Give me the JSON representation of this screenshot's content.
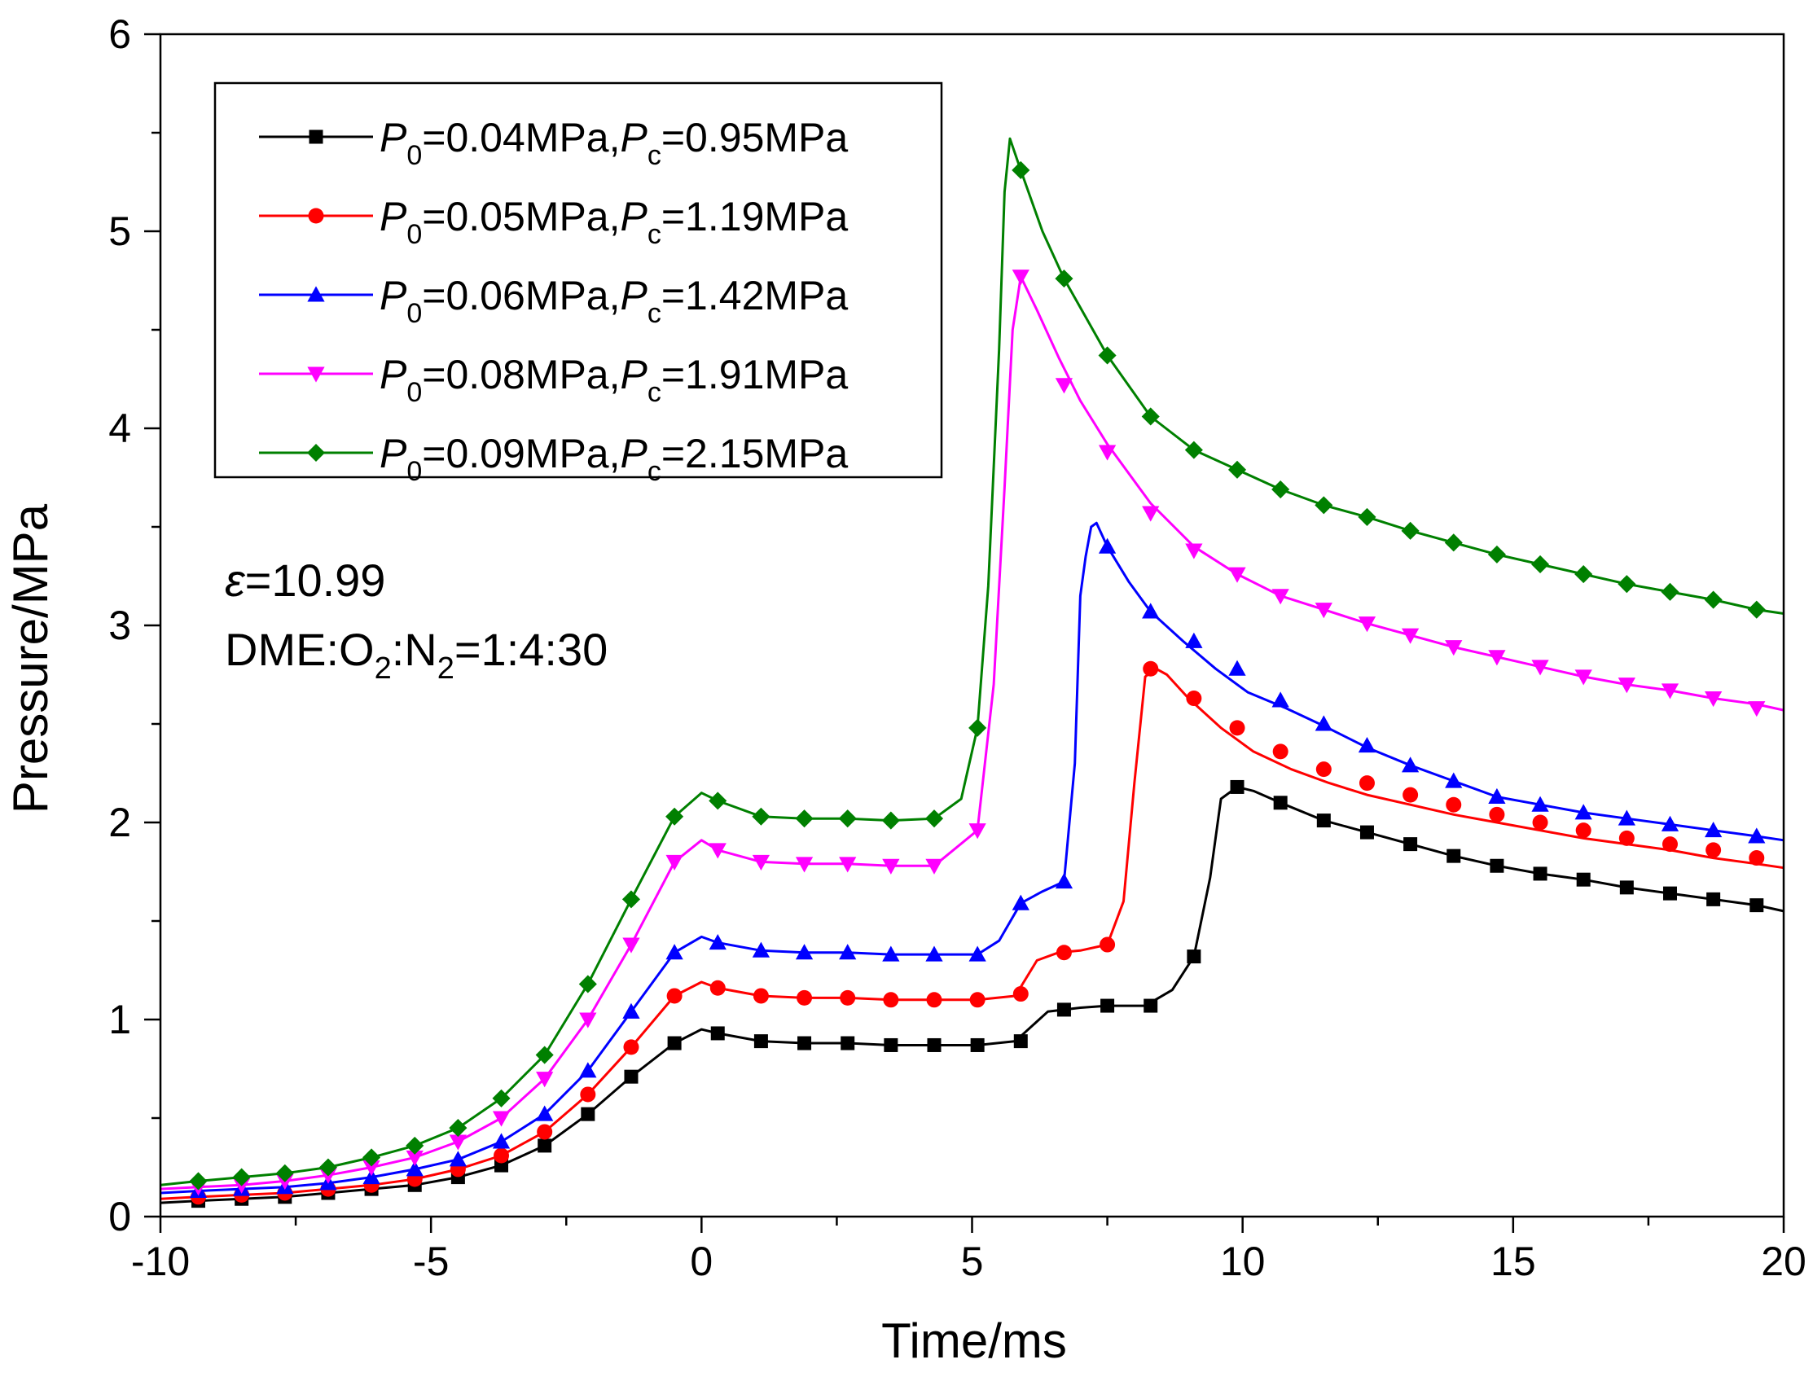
{
  "chart_data": {
    "type": "line",
    "xlabel": "Time/ms",
    "ylabel": "Pressure/MPa",
    "xlim": [
      -10,
      20
    ],
    "ylim": [
      0,
      6
    ],
    "xticks": [
      -10,
      -5,
      0,
      5,
      10,
      15,
      20
    ],
    "yticks": [
      0,
      1,
      2,
      3,
      4,
      5,
      6
    ],
    "grid": false,
    "legend_position": "top-left",
    "annotations": {
      "eps_symbol": "ε",
      "eps_value": "=10.99",
      "mix_a": "DME:O",
      "mix_sub1": "2",
      "mix_b": ":N",
      "mix_sub2": "2",
      "mix_c": "=1:4:30"
    },
    "series": [
      {
        "legend": {
          "p0": "P",
          "p0_sub": "0",
          "p0_val": "=0.04MPa,",
          "pc": "P",
          "pc_sub": "c",
          "pc_val": "=0.95MPa"
        },
        "color": "#000000",
        "marker": "square",
        "x": [
          -10,
          -9.3,
          -8.5,
          -7.7,
          -6.9,
          -6.1,
          -5.3,
          -4.5,
          -3.7,
          -2.9,
          -2.1,
          -1.3,
          -0.5,
          0,
          0.3,
          1.1,
          1.9,
          2.7,
          3.5,
          4.3,
          5.1,
          5.8,
          6.4,
          7.0,
          7.5,
          8.2,
          8.7,
          9.1,
          9.4,
          9.6,
          9.9,
          10.2,
          10.7,
          11.5,
          12.3,
          13.1,
          13.9,
          14.7,
          15.5,
          16.3,
          17.1,
          17.9,
          18.7,
          19.5,
          20
        ],
        "y": [
          0.07,
          0.08,
          0.09,
          0.1,
          0.12,
          0.14,
          0.16,
          0.2,
          0.26,
          0.36,
          0.52,
          0.71,
          0.88,
          0.95,
          0.93,
          0.89,
          0.88,
          0.88,
          0.87,
          0.87,
          0.87,
          0.89,
          1.04,
          1.06,
          1.07,
          1.07,
          1.15,
          1.32,
          1.72,
          2.12,
          2.18,
          2.16,
          2.1,
          2.01,
          1.95,
          1.89,
          1.83,
          1.78,
          1.74,
          1.71,
          1.67,
          1.64,
          1.61,
          1.58,
          1.55
        ],
        "markers_x": [
          -9.3,
          -8.5,
          -7.7,
          -6.9,
          -6.1,
          -5.3,
          -4.5,
          -3.7,
          -2.9,
          -2.1,
          -1.3,
          -0.5,
          0.3,
          1.1,
          1.9,
          2.7,
          3.5,
          4.3,
          5.1,
          5.9,
          6.7,
          7.5,
          8.3,
          9.1,
          9.9,
          10.7,
          11.5,
          12.3,
          13.1,
          13.9,
          14.7,
          15.5,
          16.3,
          17.1,
          17.9,
          18.7,
          19.5
        ],
        "markers_y": [
          0.08,
          0.09,
          0.1,
          0.12,
          0.14,
          0.16,
          0.2,
          0.26,
          0.36,
          0.52,
          0.71,
          0.88,
          0.93,
          0.89,
          0.88,
          0.88,
          0.87,
          0.87,
          0.87,
          0.89,
          1.05,
          1.07,
          1.07,
          1.32,
          2.18,
          2.1,
          2.01,
          1.95,
          1.89,
          1.83,
          1.78,
          1.74,
          1.71,
          1.67,
          1.64,
          1.61,
          1.58
        ]
      },
      {
        "legend": {
          "p0": "P",
          "p0_sub": "0",
          "p0_val": "=0.05MPa,",
          "pc": "P",
          "pc_sub": "c",
          "pc_val": "=1.19MPa"
        },
        "color": "#ff0000",
        "marker": "circle",
        "x": [
          -10,
          -9.3,
          -8.5,
          -7.7,
          -6.9,
          -6.1,
          -5.3,
          -4.5,
          -3.7,
          -2.9,
          -2.1,
          -1.3,
          -0.5,
          0,
          0.3,
          1.1,
          1.9,
          2.7,
          3.5,
          4.3,
          5.1,
          5.8,
          6.2,
          6.6,
          7.0,
          7.5,
          7.8,
          8.0,
          8.2,
          8.4,
          8.6,
          9.0,
          9.6,
          10.2,
          10.9,
          11.6,
          12.3,
          13.1,
          13.9,
          14.7,
          15.5,
          16.3,
          17.1,
          17.9,
          18.7,
          19.5,
          20
        ],
        "y": [
          0.09,
          0.1,
          0.11,
          0.12,
          0.14,
          0.16,
          0.19,
          0.24,
          0.31,
          0.43,
          0.62,
          0.86,
          1.12,
          1.19,
          1.16,
          1.12,
          1.11,
          1.11,
          1.1,
          1.1,
          1.1,
          1.12,
          1.3,
          1.34,
          1.35,
          1.38,
          1.6,
          2.2,
          2.74,
          2.78,
          2.75,
          2.63,
          2.48,
          2.36,
          2.27,
          2.2,
          2.14,
          2.09,
          2.04,
          2.0,
          1.96,
          1.92,
          1.89,
          1.86,
          1.82,
          1.79,
          1.77
        ],
        "markers_x": [
          -9.3,
          -8.5,
          -7.7,
          -6.9,
          -6.1,
          -5.3,
          -4.5,
          -3.7,
          -2.9,
          -2.1,
          -1.3,
          -0.5,
          0.3,
          1.1,
          1.9,
          2.7,
          3.5,
          4.3,
          5.1,
          5.9,
          6.7,
          7.5,
          8.3,
          9.1,
          9.9,
          10.7,
          11.5,
          12.3,
          13.1,
          13.9,
          14.7,
          15.5,
          16.3,
          17.1,
          17.9,
          18.7,
          19.5
        ],
        "markers_y": [
          0.1,
          0.11,
          0.12,
          0.14,
          0.16,
          0.19,
          0.24,
          0.31,
          0.43,
          0.62,
          0.86,
          1.12,
          1.16,
          1.12,
          1.11,
          1.11,
          1.1,
          1.1,
          1.1,
          1.13,
          1.34,
          1.38,
          2.78,
          2.63,
          2.48,
          2.36,
          2.27,
          2.2,
          2.14,
          2.09,
          2.04,
          2.0,
          1.96,
          1.92,
          1.89,
          1.86,
          1.82
        ]
      },
      {
        "legend": {
          "p0": "P",
          "p0_sub": "0",
          "p0_val": "=0.06MPa,",
          "pc": "P",
          "pc_sub": "c",
          "pc_val": "=1.42MPa"
        },
        "color": "#0000ff",
        "marker": "triangle-up",
        "x": [
          -10,
          -9.3,
          -8.5,
          -7.7,
          -6.9,
          -6.1,
          -5.3,
          -4.5,
          -3.7,
          -2.9,
          -2.1,
          -1.3,
          -0.5,
          0,
          0.3,
          1.1,
          1.9,
          2.7,
          3.5,
          4.3,
          5.1,
          5.5,
          5.9,
          6.3,
          6.7,
          6.9,
          7.0,
          7.1,
          7.2,
          7.3,
          7.5,
          7.9,
          8.3,
          8.9,
          9.5,
          10.1,
          10.8,
          11.5,
          12.3,
          13.1,
          13.9,
          14.7,
          15.5,
          16.3,
          17.1,
          17.9,
          18.7,
          19.5,
          20
        ],
        "y": [
          0.12,
          0.13,
          0.14,
          0.15,
          0.17,
          0.2,
          0.24,
          0.29,
          0.38,
          0.52,
          0.74,
          1.04,
          1.34,
          1.42,
          1.39,
          1.35,
          1.34,
          1.34,
          1.33,
          1.33,
          1.33,
          1.4,
          1.59,
          1.65,
          1.7,
          2.3,
          3.15,
          3.35,
          3.5,
          3.52,
          3.4,
          3.22,
          3.07,
          2.92,
          2.78,
          2.66,
          2.58,
          2.49,
          2.38,
          2.29,
          2.21,
          2.13,
          2.09,
          2.05,
          2.02,
          1.99,
          1.96,
          1.93,
          1.91
        ],
        "markers_x": [
          -9.3,
          -8.5,
          -7.7,
          -6.9,
          -6.1,
          -5.3,
          -4.5,
          -3.7,
          -2.9,
          -2.1,
          -1.3,
          -0.5,
          0.3,
          1.1,
          1.9,
          2.7,
          3.5,
          4.3,
          5.1,
          5.9,
          6.7,
          7.5,
          8.3,
          9.1,
          9.9,
          10.7,
          11.5,
          12.3,
          13.1,
          13.9,
          14.7,
          15.5,
          16.3,
          17.1,
          17.9,
          18.7,
          19.5
        ],
        "markers_y": [
          0.13,
          0.14,
          0.15,
          0.17,
          0.2,
          0.24,
          0.29,
          0.38,
          0.52,
          0.74,
          1.04,
          1.34,
          1.39,
          1.35,
          1.34,
          1.34,
          1.33,
          1.33,
          1.33,
          1.59,
          1.7,
          3.4,
          3.07,
          2.92,
          2.78,
          2.62,
          2.5,
          2.39,
          2.29,
          2.21,
          2.13,
          2.09,
          2.05,
          2.02,
          1.99,
          1.96,
          1.93
        ]
      },
      {
        "legend": {
          "p0": "P",
          "p0_sub": "0",
          "p0_val": "=0.08MPa,",
          "pc": "P",
          "pc_sub": "c",
          "pc_val": "=1.91MPa"
        },
        "color": "#ff00ff",
        "marker": "triangle-down",
        "x": [
          -10,
          -9.3,
          -8.5,
          -7.7,
          -6.9,
          -6.1,
          -5.3,
          -4.5,
          -3.7,
          -2.9,
          -2.1,
          -1.3,
          -0.5,
          0,
          0.3,
          1.1,
          1.9,
          2.7,
          3.5,
          4.3,
          5.1,
          5.4,
          5.6,
          5.75,
          5.9,
          6.2,
          6.6,
          7.0,
          7.5,
          8.3,
          9.1,
          9.9,
          10.7,
          11.5,
          12.3,
          13.1,
          13.9,
          14.7,
          15.5,
          16.3,
          17.1,
          17.9,
          18.7,
          19.5,
          20
        ],
        "y": [
          0.14,
          0.15,
          0.16,
          0.18,
          0.21,
          0.25,
          0.3,
          0.38,
          0.5,
          0.7,
          1.0,
          1.38,
          1.8,
          1.91,
          1.86,
          1.8,
          1.79,
          1.79,
          1.78,
          1.78,
          1.96,
          2.7,
          3.7,
          4.5,
          4.77,
          4.6,
          4.36,
          4.14,
          3.92,
          3.62,
          3.4,
          3.26,
          3.15,
          3.08,
          3.01,
          2.95,
          2.89,
          2.84,
          2.79,
          2.74,
          2.7,
          2.67,
          2.63,
          2.6,
          2.57
        ],
        "markers_x": [
          -9.3,
          -8.5,
          -7.7,
          -6.9,
          -6.1,
          -5.3,
          -4.5,
          -3.7,
          -2.9,
          -2.1,
          -1.3,
          -0.5,
          0.3,
          1.1,
          1.9,
          2.7,
          3.5,
          4.3,
          5.1,
          5.9,
          6.7,
          7.5,
          8.3,
          9.1,
          9.9,
          10.7,
          11.5,
          12.3,
          13.1,
          13.9,
          14.7,
          15.5,
          16.3,
          17.1,
          17.9,
          18.7,
          19.5
        ],
        "markers_y": [
          0.15,
          0.16,
          0.18,
          0.21,
          0.25,
          0.3,
          0.38,
          0.5,
          0.7,
          1.0,
          1.38,
          1.8,
          1.86,
          1.8,
          1.79,
          1.79,
          1.78,
          1.78,
          1.96,
          4.77,
          4.22,
          3.88,
          3.57,
          3.38,
          3.26,
          3.15,
          3.08,
          3.01,
          2.95,
          2.89,
          2.84,
          2.79,
          2.74,
          2.7,
          2.67,
          2.63,
          2.58
        ]
      },
      {
        "legend": {
          "p0": "P",
          "p0_sub": "0",
          "p0_val": "=0.09MPa,",
          "pc": "P",
          "pc_sub": "c",
          "pc_val": "=2.15MPa"
        },
        "color": "#008000",
        "marker": "diamond",
        "x": [
          -10,
          -9.3,
          -8.5,
          -7.7,
          -6.9,
          -6.1,
          -5.3,
          -4.5,
          -3.7,
          -2.9,
          -2.1,
          -1.3,
          -0.5,
          0,
          0.3,
          1.1,
          1.9,
          2.7,
          3.5,
          4.3,
          4.8,
          5.1,
          5.3,
          5.5,
          5.6,
          5.7,
          5.9,
          6.3,
          6.7,
          7.5,
          8.3,
          9.1,
          9.9,
          10.7,
          11.5,
          12.3,
          13.1,
          13.9,
          14.7,
          15.5,
          16.3,
          17.1,
          17.9,
          18.7,
          19.5,
          20
        ],
        "y": [
          0.16,
          0.18,
          0.2,
          0.22,
          0.25,
          0.3,
          0.36,
          0.45,
          0.6,
          0.82,
          1.18,
          1.61,
          2.03,
          2.15,
          2.11,
          2.03,
          2.02,
          2.02,
          2.01,
          2.02,
          2.12,
          2.48,
          3.2,
          4.4,
          5.2,
          5.47,
          5.31,
          5.0,
          4.76,
          4.37,
          4.06,
          3.89,
          3.79,
          3.69,
          3.61,
          3.55,
          3.48,
          3.42,
          3.36,
          3.31,
          3.26,
          3.21,
          3.17,
          3.13,
          3.08,
          3.06
        ],
        "markers_x": [
          -9.3,
          -8.5,
          -7.7,
          -6.9,
          -6.1,
          -5.3,
          -4.5,
          -3.7,
          -2.9,
          -2.1,
          -1.3,
          -0.5,
          0.3,
          1.1,
          1.9,
          2.7,
          3.5,
          4.3,
          5.1,
          5.9,
          6.7,
          7.5,
          8.3,
          9.1,
          9.9,
          10.7,
          11.5,
          12.3,
          13.1,
          13.9,
          14.7,
          15.5,
          16.3,
          17.1,
          17.9,
          18.7,
          19.5
        ],
        "markers_y": [
          0.18,
          0.2,
          0.22,
          0.25,
          0.3,
          0.36,
          0.45,
          0.6,
          0.82,
          1.18,
          1.61,
          2.03,
          2.11,
          2.03,
          2.02,
          2.02,
          2.01,
          2.02,
          2.48,
          5.31,
          4.76,
          4.37,
          4.06,
          3.89,
          3.79,
          3.69,
          3.61,
          3.55,
          3.48,
          3.42,
          3.36,
          3.31,
          3.26,
          3.21,
          3.17,
          3.13,
          3.08
        ]
      }
    ]
  }
}
